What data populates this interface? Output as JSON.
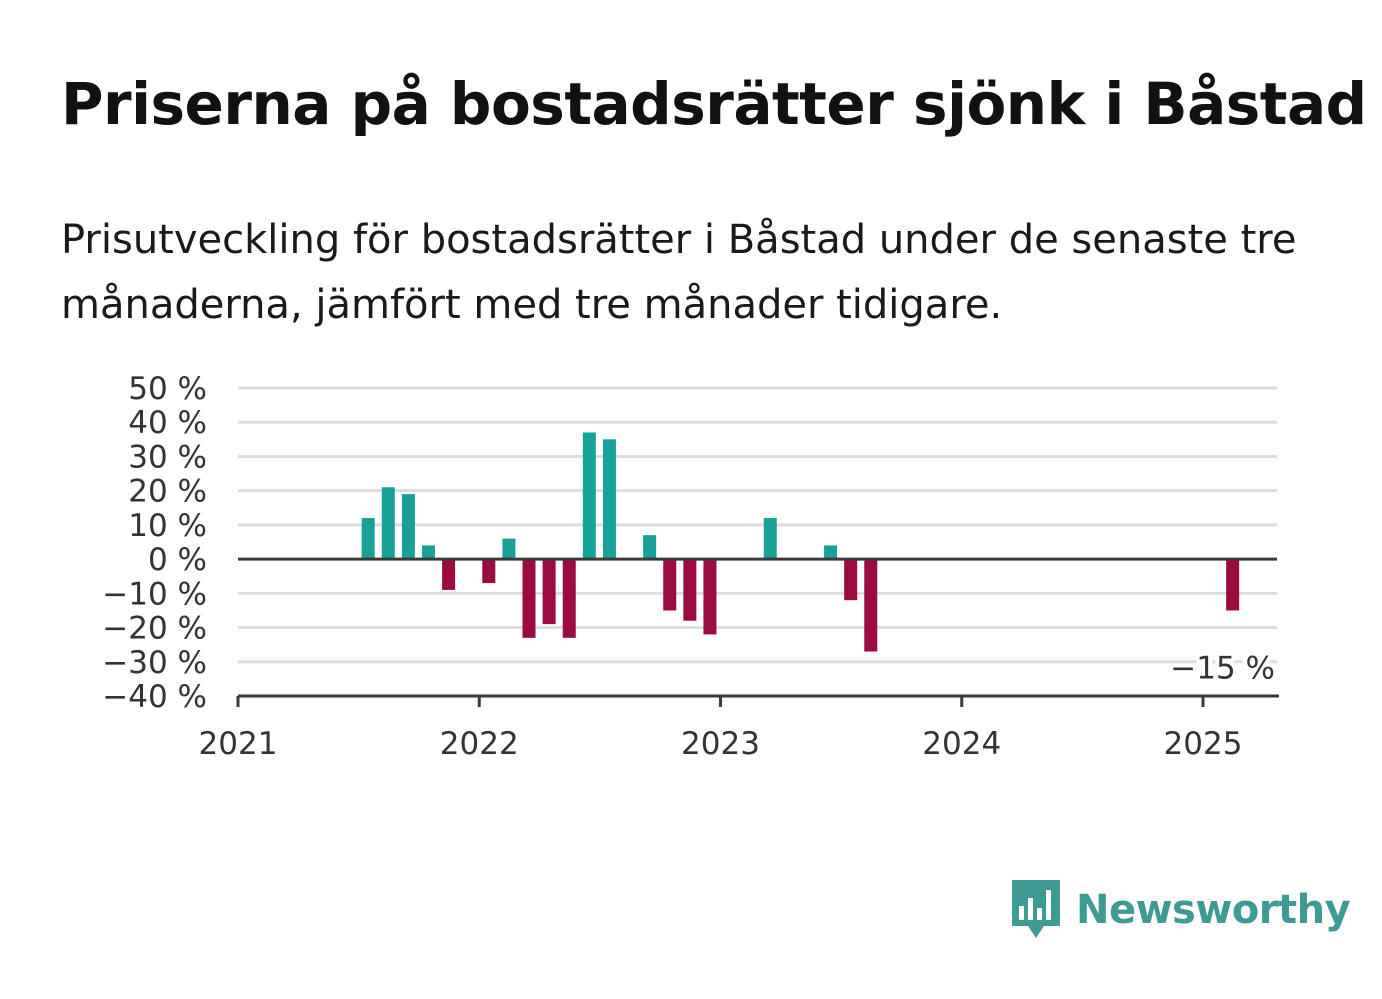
{
  "header": {
    "title": "Priserna på bostadsrätter sjönk i Båstad",
    "subtitle": "Prisutveckling för bostadsrätter i Båstad under de senaste tre månaderna, jämfört med tre månader tidigare."
  },
  "chart_data": {
    "type": "bar",
    "xlabel": "",
    "ylabel": "",
    "ylim": [
      -40,
      50
    ],
    "y_ticks": [
      50,
      40,
      30,
      20,
      10,
      0,
      -10,
      -20,
      -30,
      -40
    ],
    "y_tick_labels": [
      "50 %",
      "40 %",
      "30 %",
      "20 %",
      "10 %",
      "0 %",
      "−10 %",
      "−20 %",
      "−30 %",
      "−40 %"
    ],
    "x_range": [
      "2021-01",
      "2025-04"
    ],
    "x_ticks": [
      "2021",
      "2022",
      "2023",
      "2024",
      "2025"
    ],
    "grid": true,
    "colors": {
      "positive": "#17a198",
      "negative": "#9b0a41"
    },
    "values": [
      {
        "x": "2021-07",
        "value": 12
      },
      {
        "x": "2021-08",
        "value": 21
      },
      {
        "x": "2021-09",
        "value": 19
      },
      {
        "x": "2021-10",
        "value": 4
      },
      {
        "x": "2021-11",
        "value": -9
      },
      {
        "x": "2022-01",
        "value": -7
      },
      {
        "x": "2022-02",
        "value": 6
      },
      {
        "x": "2022-03",
        "value": -23
      },
      {
        "x": "2022-04",
        "value": -19
      },
      {
        "x": "2022-05",
        "value": -23
      },
      {
        "x": "2022-06",
        "value": 37
      },
      {
        "x": "2022-07",
        "value": 35
      },
      {
        "x": "2022-09",
        "value": 7
      },
      {
        "x": "2022-10",
        "value": -15
      },
      {
        "x": "2022-11",
        "value": -18
      },
      {
        "x": "2022-12",
        "value": -22
      },
      {
        "x": "2023-03",
        "value": 12
      },
      {
        "x": "2023-06",
        "value": 4
      },
      {
        "x": "2023-07",
        "value": -12
      },
      {
        "x": "2023-08",
        "value": -27
      },
      {
        "x": "2025-02",
        "value": -15
      }
    ],
    "annotation": {
      "x": "2025-02",
      "value": -15,
      "text": "−15 %"
    }
  },
  "logo": {
    "text": "Newsworthy",
    "icon": "bar-chart-speech-bubble-icon",
    "color": "#3e9b93"
  }
}
